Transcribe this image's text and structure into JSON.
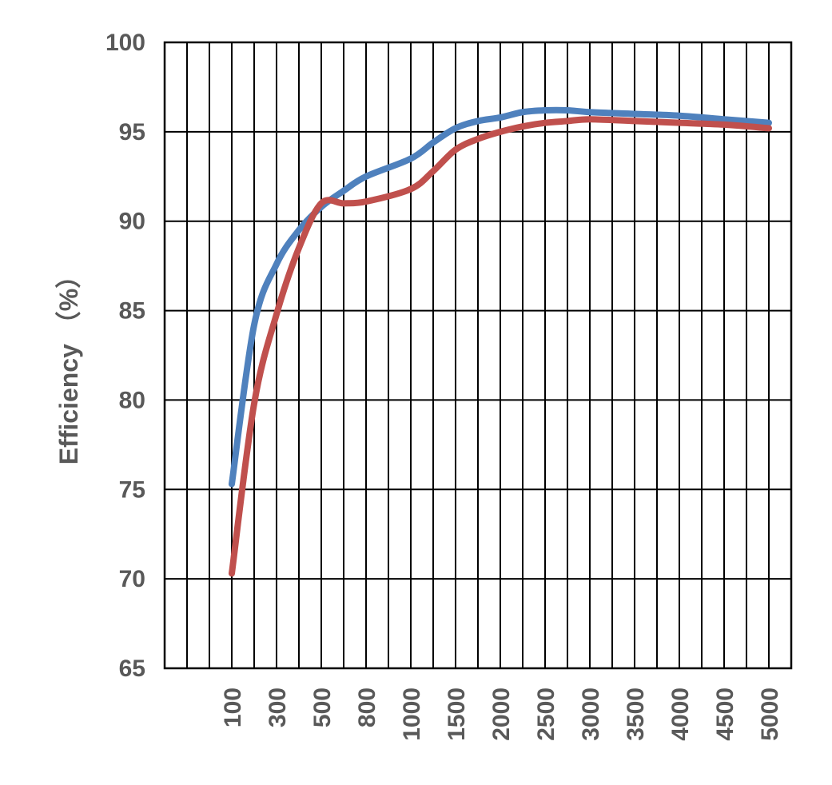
{
  "chart_data": {
    "type": "line",
    "title": "",
    "xlabel": "",
    "ylabel": "Efficiency （%）",
    "categories": [
      "",
      "",
      "",
      "100",
      "",
      "300",
      "",
      "500",
      "",
      "800",
      "",
      "1000",
      "",
      "1500",
      "",
      "2000",
      "",
      "2500",
      "",
      "3000",
      "",
      "3500",
      "",
      "4000",
      "",
      "4500",
      "",
      "5000"
    ],
    "ylim": [
      65,
      100
    ],
    "yticks": [
      "65",
      "70",
      "75",
      "80",
      "85",
      "90",
      "95",
      "100"
    ],
    "grid": true,
    "legend": "none",
    "series": [
      {
        "color": "#4F81BD",
        "x": [
          "100",
          "200",
          "300",
          "400",
          "500",
          "650",
          "800",
          "1000",
          "1250",
          "1500",
          "1750",
          "2000",
          "2250",
          "2500",
          "2750",
          "3000",
          "3500",
          "4000",
          "4500",
          "5000"
        ],
        "values": [
          75.3,
          84.2,
          87.6,
          89.5,
          90.8,
          91.7,
          92.5,
          93.5,
          94.4,
          95.2,
          95.6,
          95.8,
          96.1,
          96.2,
          96.2,
          96.1,
          96.0,
          95.9,
          95.7,
          95.5
        ]
      },
      {
        "color": "#C0504D",
        "x": [
          "100",
          "200",
          "300",
          "400",
          "500",
          "650",
          "800",
          "1000",
          "1250",
          "1500",
          "1750",
          "2000",
          "2250",
          "2500",
          "2750",
          "3000",
          "3500",
          "4000",
          "4500",
          "5000"
        ],
        "values": [
          70.3,
          79.8,
          84.8,
          88.5,
          91.0,
          91.0,
          91.1,
          91.8,
          92.8,
          94.0,
          94.6,
          95.0,
          95.3,
          95.5,
          95.6,
          95.7,
          95.6,
          95.5,
          95.4,
          95.2
        ]
      }
    ]
  }
}
